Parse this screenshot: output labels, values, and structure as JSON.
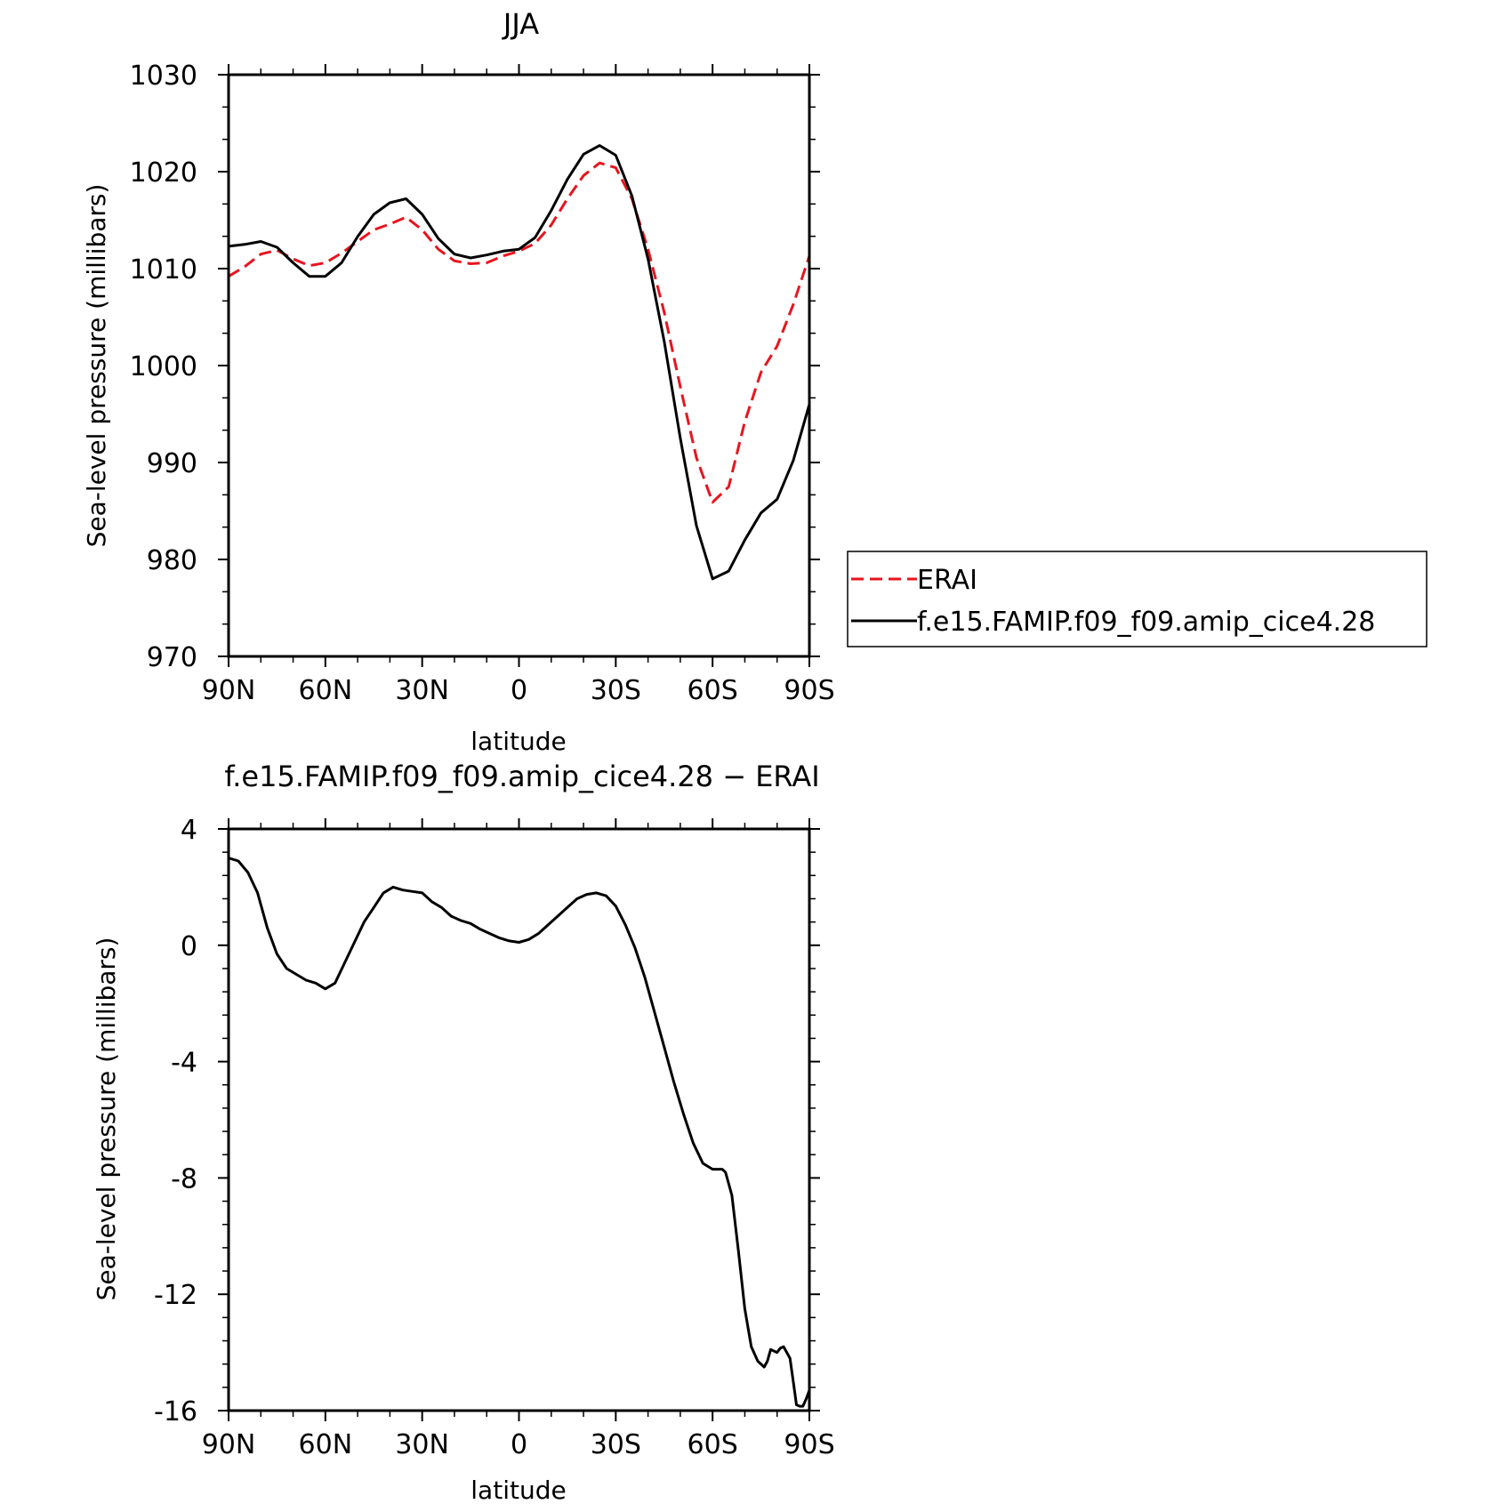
{
  "chart_data": [
    {
      "type": "line",
      "title": "JJA",
      "xlabel": "latitude",
      "ylabel": "Sea-level pressure (millibars)",
      "xlim": [
        90,
        -90
      ],
      "ylim": [
        970,
        1030
      ],
      "x_tick_values": [
        90,
        60,
        30,
        0,
        -30,
        -60,
        -90
      ],
      "x_tick_labels": [
        "90N",
        "60N",
        "30N",
        "0",
        "30S",
        "60S",
        "90S"
      ],
      "y_ticks": [
        970,
        980,
        990,
        1000,
        1010,
        1020,
        1030
      ],
      "legend_position": "right",
      "x": [
        90,
        85,
        80,
        75,
        70,
        65,
        60,
        55,
        50,
        45,
        40,
        35,
        30,
        25,
        20,
        15,
        10,
        5,
        0,
        -5,
        -10,
        -15,
        -20,
        -25,
        -30,
        -35,
        -40,
        -45,
        -50,
        -55,
        -60,
        -65,
        -70,
        -75,
        -80,
        -85,
        -90
      ],
      "series": [
        {
          "name": "ERAI",
          "color": "#e8141e",
          "dash": "dashed",
          "values": [
            1009.2,
            1010.2,
            1011.5,
            1011.9,
            1011.0,
            1010.3,
            1010.6,
            1011.6,
            1012.8,
            1014.0,
            1014.6,
            1015.3,
            1014.0,
            1012.0,
            1010.8,
            1010.5,
            1010.6,
            1011.3,
            1011.8,
            1012.6,
            1014.5,
            1017.2,
            1019.6,
            1020.9,
            1020.4,
            1017.2,
            1012.0,
            1005.5,
            997.8,
            990.5,
            985.9,
            987.5,
            994.2,
            999.3,
            1002.0,
            1006.3,
            1011.3
          ]
        },
        {
          "name": "f.e15.FAMIP.f09_f09.amip_cice4.28",
          "color": "#000000",
          "dash": "solid",
          "values": [
            1012.3,
            1012.5,
            1012.8,
            1012.2,
            1010.6,
            1009.2,
            1009.2,
            1010.6,
            1013.3,
            1015.6,
            1016.8,
            1017.2,
            1015.6,
            1013.1,
            1011.5,
            1011.1,
            1011.4,
            1011.8,
            1012.0,
            1013.2,
            1016.0,
            1019.2,
            1021.8,
            1022.7,
            1021.7,
            1017.5,
            1011.0,
            1002.5,
            992.5,
            983.5,
            978.0,
            978.8,
            982.0,
            984.8,
            986.2,
            990.2,
            996.0
          ]
        }
      ]
    },
    {
      "type": "line",
      "title": "f.e15.FAMIP.f09_f09.amip_cice4.28 − ERAI",
      "xlabel": "latitude",
      "ylabel": "Sea-level pressure (millibars)",
      "xlim": [
        90,
        -90
      ],
      "ylim": [
        -16,
        4
      ],
      "x_tick_values": [
        90,
        60,
        30,
        0,
        -30,
        -60,
        -90
      ],
      "x_tick_labels": [
        "90N",
        "60N",
        "30N",
        "0",
        "30S",
        "60S",
        "90S"
      ],
      "y_ticks": [
        -16,
        -12,
        -8,
        -4,
        0,
        4
      ],
      "x": [
        90,
        87,
        84,
        81,
        78,
        75,
        72,
        69,
        66,
        63,
        60,
        57,
        54,
        51,
        48,
        45,
        42,
        39,
        36,
        33,
        30,
        27,
        24,
        21,
        18,
        15,
        12,
        9,
        6,
        3,
        0,
        -3,
        -6,
        -9,
        -12,
        -15,
        -18,
        -21,
        -24,
        -27,
        -30,
        -33,
        -36,
        -39,
        -42,
        -45,
        -48,
        -51,
        -54,
        -57,
        -60,
        -63,
        -64,
        -66,
        -68,
        -70,
        -72,
        -74,
        -76,
        -77,
        -78,
        -79,
        -80,
        -81,
        -82,
        -83,
        -84,
        -85,
        -86,
        -87,
        -88,
        -89,
        -90
      ],
      "series": [
        {
          "name": "",
          "color": "#000000",
          "dash": "solid",
          "values": [
            3.0,
            2.9,
            2.5,
            1.8,
            0.6,
            -0.3,
            -0.8,
            -1.0,
            -1.2,
            -1.3,
            -1.5,
            -1.3,
            -0.6,
            0.1,
            0.8,
            1.3,
            1.8,
            2.0,
            1.9,
            1.85,
            1.8,
            1.5,
            1.3,
            1.0,
            0.85,
            0.75,
            0.55,
            0.4,
            0.25,
            0.15,
            0.1,
            0.2,
            0.4,
            0.7,
            1.0,
            1.3,
            1.6,
            1.75,
            1.8,
            1.7,
            1.35,
            0.7,
            -0.1,
            -1.1,
            -2.3,
            -3.5,
            -4.7,
            -5.8,
            -6.8,
            -7.5,
            -7.7,
            -7.7,
            -7.8,
            -8.6,
            -10.5,
            -12.5,
            -13.8,
            -14.3,
            -14.5,
            -14.3,
            -13.9,
            -13.95,
            -14.0,
            -13.85,
            -13.8,
            -14.0,
            -14.2,
            -15.0,
            -15.8,
            -15.85,
            -15.85,
            -15.6,
            -15.3
          ]
        }
      ]
    }
  ]
}
